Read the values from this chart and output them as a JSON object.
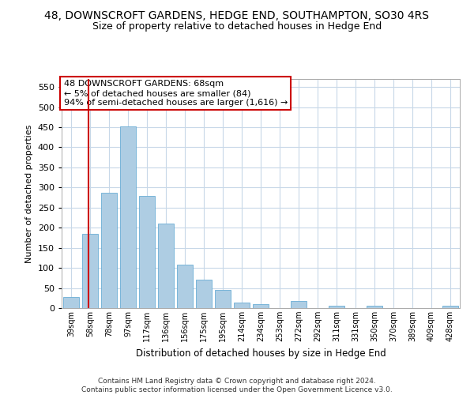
{
  "title": "48, DOWNSCROFT GARDENS, HEDGE END, SOUTHAMPTON, SO30 4RS",
  "subtitle": "Size of property relative to detached houses in Hedge End",
  "xlabel": "Distribution of detached houses by size in Hedge End",
  "ylabel": "Number of detached properties",
  "categories": [
    "39sqm",
    "58sqm",
    "78sqm",
    "97sqm",
    "117sqm",
    "136sqm",
    "156sqm",
    "175sqm",
    "195sqm",
    "214sqm",
    "234sqm",
    "253sqm",
    "272sqm",
    "292sqm",
    "311sqm",
    "331sqm",
    "350sqm",
    "370sqm",
    "389sqm",
    "409sqm",
    "428sqm"
  ],
  "values": [
    28,
    185,
    287,
    452,
    280,
    211,
    109,
    70,
    45,
    13,
    10,
    0,
    17,
    0,
    6,
    0,
    5,
    0,
    0,
    0,
    5
  ],
  "bar_color": "#aecde3",
  "bar_edge_color": "#6aadd5",
  "vline_x_index": 1,
  "vline_color": "#cc0000",
  "annotation_text": "48 DOWNSCROFT GARDENS: 68sqm\n← 5% of detached houses are smaller (84)\n94% of semi-detached houses are larger (1,616) →",
  "annotation_box_color": "#ffffff",
  "annotation_box_edge_color": "#cc0000",
  "ylim": [
    0,
    570
  ],
  "yticks": [
    0,
    50,
    100,
    150,
    200,
    250,
    300,
    350,
    400,
    450,
    500,
    550
  ],
  "footnote": "Contains HM Land Registry data © Crown copyright and database right 2024.\nContains public sector information licensed under the Open Government Licence v3.0.",
  "bg_color": "#ffffff",
  "grid_color": "#c8d8e8",
  "title_fontsize": 10,
  "subtitle_fontsize": 9,
  "xlabel_fontsize": 8.5,
  "ylabel_fontsize": 8,
  "annotation_fontsize": 8,
  "footnote_fontsize": 6.5
}
